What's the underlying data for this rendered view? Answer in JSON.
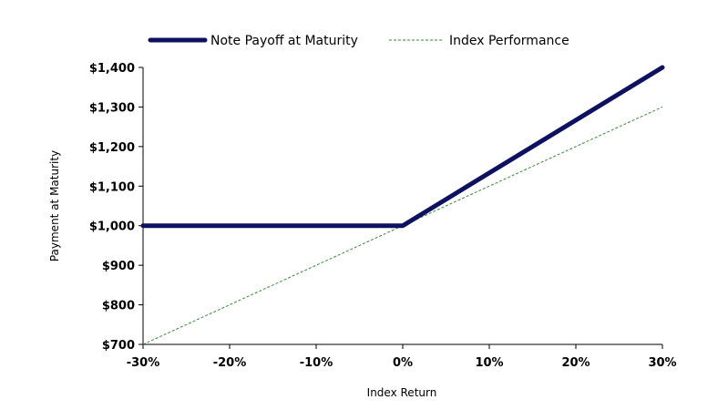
{
  "chart_data": {
    "type": "line",
    "x": [
      -30,
      0,
      30
    ],
    "series": [
      {
        "name": "Note Payoff at Maturity",
        "x": [
          -30,
          0,
          30
        ],
        "values": [
          1000,
          1000,
          1400
        ],
        "color": "#0d1160",
        "style": "solid-thick"
      },
      {
        "name": "Index Performance",
        "x": [
          -30,
          0,
          30
        ],
        "values": [
          700,
          1000,
          1300
        ],
        "color": "#3a8a3a",
        "style": "dashed-thin"
      }
    ],
    "xlabel": "Index Return",
    "ylabel": "Payment at Maturity",
    "xlim": [
      -30,
      30
    ],
    "ylim": [
      700,
      1400
    ],
    "x_ticks": [
      -30,
      -20,
      -10,
      0,
      10,
      20,
      30
    ],
    "x_tick_labels": [
      "-30%",
      "-20%",
      "-10%",
      "0%",
      "10%",
      "20%",
      "30%"
    ],
    "y_ticks": [
      700,
      800,
      900,
      1000,
      1100,
      1200,
      1300,
      1400
    ],
    "y_tick_labels": [
      "$700",
      "$800",
      "$900",
      "$1,000",
      "$1,100",
      "$1,200",
      "$1,300",
      "$1,400"
    ],
    "grid": false,
    "legend_position": "top"
  }
}
